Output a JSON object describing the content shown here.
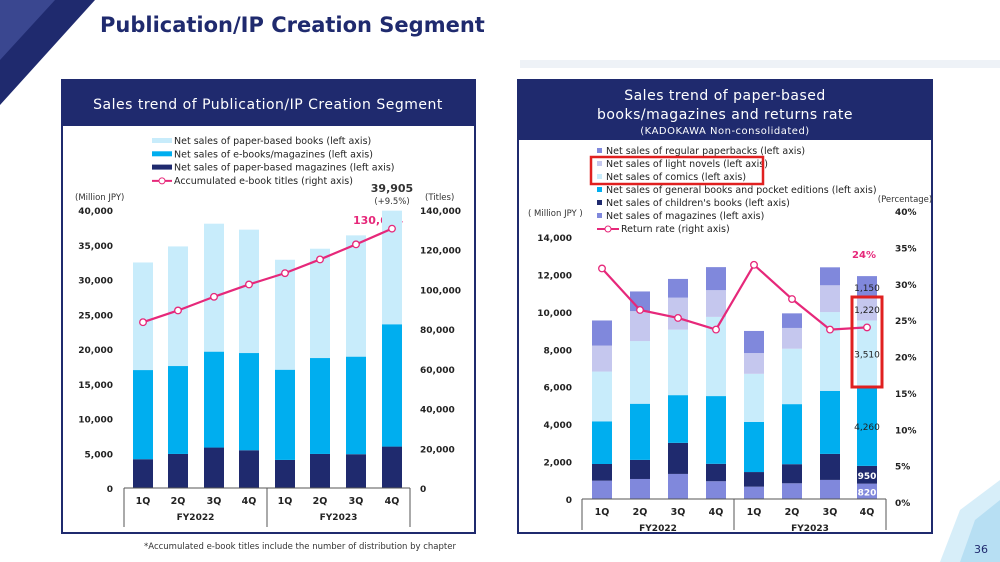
{
  "page": {
    "title": "Publication/IP Creation Segment",
    "page_number": "36",
    "footnote": "*Accumulated e-book titles include the number of distribution by chapter"
  },
  "colors": {
    "navy": "#1f2a6e",
    "paper_books": "#c8ecfb",
    "ebooks": "#00aeef",
    "paper_magazines": "#1f2a6e",
    "line": "#e6287a",
    "regular_paperbacks": "#8088dc",
    "light_novels": "#c5c7ee",
    "comics": "#c8ecfb",
    "general_books": "#00aeef",
    "childrens_books": "#1f2a6e",
    "magazines": "#8088dc",
    "highlight": "#e02020"
  },
  "chart_data": [
    {
      "type": "bar",
      "stacked": true,
      "title": "Sales trend of Publication/IP Creation Segment",
      "categories": [
        "1Q",
        "2Q",
        "3Q",
        "4Q",
        "1Q",
        "2Q",
        "3Q",
        "4Q"
      ],
      "groups": [
        "FY2022",
        "FY2023"
      ],
      "ylabel": "(Million JPY)",
      "y2label": "(Titles)",
      "ylim": [
        0,
        40000
      ],
      "y2lim": [
        0,
        140000
      ],
      "yticks": [
        "0",
        "5,000",
        "10,000",
        "15,000",
        "20,000",
        "25,000",
        "30,000",
        "35,000",
        "40,000"
      ],
      "y2ticks": [
        "0",
        "20,000",
        "40,000",
        "60,000",
        "80,000",
        "100,000",
        "120,000",
        "140,000"
      ],
      "series": [
        {
          "name": "Net sales of paper-based magazines (left axis)",
          "values": [
            4140,
            4900,
            5820,
            5430,
            4040,
            4900,
            4860,
            5960
          ]
        },
        {
          "name": "Net sales of e-books/magazines (left axis)",
          "values": [
            12830,
            12650,
            13800,
            13990,
            12980,
            13800,
            14040,
            17600
          ]
        },
        {
          "name": "Net sales of paper-based books (left axis)",
          "values": [
            15480,
            17210,
            18410,
            17750,
            15820,
            15730,
            17450,
            16345
          ]
        },
        {
          "name": "Accumulated e-book titles (right axis)",
          "type": "line",
          "axis": "right",
          "values": [
            83500,
            89400,
            96300,
            102500,
            108200,
            115100,
            122700,
            130614
          ]
        }
      ],
      "legend_order": [
        "Net sales of paper-based books (left axis)",
        "Net sales of e-books/magazines (left axis)",
        "Net sales of paper-based magazines (left axis)",
        "Accumulated e-book titles (right axis)"
      ],
      "annotations": {
        "total_label": "39,905",
        "growth_label": "(+9.5%)",
        "titles_label": "130,614"
      },
      "legend": "top"
    },
    {
      "type": "bar",
      "stacked": true,
      "title": "Sales trend of paper-based books/magazines and returns rate",
      "subtitle": "(KADOKAWA Non-consolidated)",
      "categories": [
        "1Q",
        "2Q",
        "3Q",
        "4Q",
        "1Q",
        "2Q",
        "3Q",
        "4Q"
      ],
      "groups": [
        "FY2022",
        "FY2023"
      ],
      "ylabel": "( Million JPY )",
      "y2label": "(Percentage)",
      "ylim": [
        0,
        14000
      ],
      "y2lim": [
        0,
        40
      ],
      "yticks": [
        "0",
        "2,000",
        "4,000",
        "6,000",
        "8,000",
        "10,000",
        "12,000",
        "14,000"
      ],
      "y2ticks": [
        "0%",
        "5%",
        "10%",
        "15%",
        "20%",
        "25%",
        "30%",
        "35%",
        "40%"
      ],
      "series": [
        {
          "name": "Net sales of magazines (left axis)",
          "values": [
            980,
            1070,
            1340,
            950,
            660,
            840,
            1020,
            820
          ]
        },
        {
          "name": "Net sales of children's books (left axis)",
          "values": [
            890,
            1020,
            1660,
            930,
            780,
            1020,
            1390,
            950
          ]
        },
        {
          "name": "Net sales of general books and pocket editions (left axis)",
          "values": [
            2280,
            3000,
            2550,
            3620,
            2680,
            3210,
            3370,
            4260
          ]
        },
        {
          "name": "Net sales of comics (left axis)",
          "values": [
            2660,
            3350,
            3500,
            4230,
            2570,
            2960,
            4210,
            3510
          ]
        },
        {
          "name": "Net sales of light novels (left axis)",
          "values": [
            1390,
            1600,
            1710,
            1430,
            1110,
            1110,
            1430,
            1220
          ]
        },
        {
          "name": "Net sales of regular paperbacks (left axis)",
          "values": [
            1340,
            1050,
            1000,
            1230,
            1180,
            780,
            960,
            1150
          ]
        },
        {
          "name": "Return rate (right axis)",
          "type": "line",
          "axis": "right",
          "values": [
            32.1,
            26.4,
            25.3,
            23.7,
            32.6,
            27.9,
            23.7,
            24
          ]
        }
      ],
      "legend_order": [
        "Net sales of regular paperbacks (left axis)",
        "Net sales of light novels (left axis)",
        "Net sales of comics (left axis)",
        "Net sales of general books and pocket editions (left axis)",
        "Net sales of children's books (left axis)",
        "Net sales of magazines (left axis)",
        "Return rate (right axis)"
      ],
      "highlighted_legend": [
        "Net sales of light novels (left axis)",
        "Net sales of comics (left axis)"
      ],
      "data_labels_4Q_FY2023": [
        "820",
        "950",
        "4,260",
        "3,510",
        "1,220",
        "1,150"
      ],
      "rate_label": "24%",
      "legend": "top"
    }
  ]
}
